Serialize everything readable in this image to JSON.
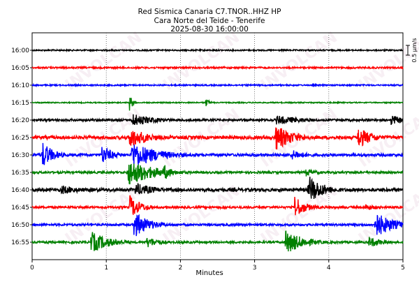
{
  "header": {
    "title": "Red Sismica Canaria C7.TNOR..HHZ HP",
    "subtitle": "Cara Norte del Teide - Tenerife",
    "timestamp": "2025-08-30 16:00:00"
  },
  "watermark": {
    "text": "INVOLCAN",
    "color": "#e8d0e0"
  },
  "chart_data": {
    "type": "line",
    "xlabel": "Minutes",
    "xlim": [
      0,
      5
    ],
    "xticks": [
      "0",
      "1",
      "2",
      "3",
      "4",
      "5"
    ],
    "grid": "vertical dotted at each minute",
    "scale_label": "0.5 µm/s",
    "row_colors": [
      "#000000",
      "#ff0000",
      "#0000ff",
      "#008000"
    ],
    "rows": [
      {
        "label": "16:00",
        "color": "#000000",
        "base": 0.05,
        "events": []
      },
      {
        "label": "16:05",
        "color": "#ff0000",
        "base": 0.06,
        "events": []
      },
      {
        "label": "16:10",
        "color": "#0000ff",
        "base": 0.05,
        "events": []
      },
      {
        "label": "16:15",
        "color": "#008000",
        "base": 0.04,
        "events": [
          {
            "t": 1.32,
            "amp": 0.6,
            "dur": 0.04
          },
          {
            "t": 2.35,
            "amp": 0.3,
            "dur": 0.05
          }
        ]
      },
      {
        "label": "16:20",
        "color": "#000000",
        "base": 0.08,
        "events": [
          {
            "t": 1.35,
            "amp": 0.5,
            "dur": 0.3
          },
          {
            "t": 3.3,
            "amp": 0.35,
            "dur": 0.4
          },
          {
            "t": 4.85,
            "amp": 0.4,
            "dur": 0.15
          }
        ]
      },
      {
        "label": "16:25",
        "color": "#ff0000",
        "base": 0.12,
        "events": [
          {
            "t": 1.32,
            "amp": 0.8,
            "dur": 0.25
          },
          {
            "t": 3.28,
            "amp": 1.0,
            "dur": 0.25
          },
          {
            "t": 4.4,
            "amp": 0.8,
            "dur": 0.2
          }
        ]
      },
      {
        "label": "16:30",
        "color": "#0000ff",
        "base": 0.1,
        "events": [
          {
            "t": 0.14,
            "amp": 1.0,
            "dur": 0.15
          },
          {
            "t": 0.95,
            "amp": 0.7,
            "dur": 0.15
          },
          {
            "t": 1.35,
            "amp": 1.0,
            "dur": 0.35
          },
          {
            "t": 3.5,
            "amp": 0.4,
            "dur": 0.2
          }
        ]
      },
      {
        "label": "16:35",
        "color": "#008000",
        "base": 0.08,
        "events": [
          {
            "t": 1.3,
            "amp": 1.0,
            "dur": 0.35
          },
          {
            "t": 1.78,
            "amp": 0.6,
            "dur": 0.12
          },
          {
            "t": 3.7,
            "amp": 0.3,
            "dur": 0.15
          }
        ]
      },
      {
        "label": "16:40",
        "color": "#000000",
        "base": 0.12,
        "events": [
          {
            "t": 0.4,
            "amp": 0.35,
            "dur": 0.3
          },
          {
            "t": 1.4,
            "amp": 0.5,
            "dur": 0.3
          },
          {
            "t": 3.72,
            "amp": 0.4,
            "dur": 0.2
          },
          {
            "t": 3.75,
            "amp": 1.0,
            "dur": 0.2
          }
        ]
      },
      {
        "label": "16:45",
        "color": "#ff0000",
        "base": 0.08,
        "events": [
          {
            "t": 1.32,
            "amp": 0.9,
            "dur": 0.15
          },
          {
            "t": 3.55,
            "amp": 0.8,
            "dur": 0.15
          },
          {
            "t": 4.5,
            "amp": 0.25,
            "dur": 0.2
          }
        ]
      },
      {
        "label": "16:50",
        "color": "#0000ff",
        "base": 0.08,
        "events": [
          {
            "t": 1.38,
            "amp": 1.0,
            "dur": 0.2
          },
          {
            "t": 4.62,
            "amp": 1.0,
            "dur": 0.25
          }
        ]
      },
      {
        "label": "16:55",
        "color": "#008000",
        "base": 0.08,
        "events": [
          {
            "t": 0.8,
            "amp": 0.8,
            "dur": 0.25
          },
          {
            "t": 1.55,
            "amp": 0.4,
            "dur": 0.2
          },
          {
            "t": 3.42,
            "amp": 0.9,
            "dur": 0.25
          },
          {
            "t": 4.55,
            "amp": 0.4,
            "dur": 0.2
          }
        ]
      }
    ]
  }
}
